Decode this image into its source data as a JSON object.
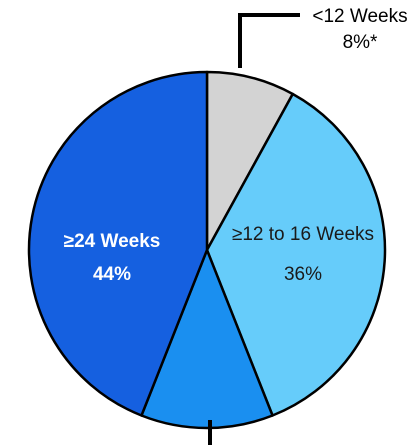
{
  "chart_data": {
    "type": "pie",
    "title": "",
    "slices": [
      {
        "label": "<12 Weeks",
        "value": 8,
        "value_label": "8%*",
        "color": "#d3d3d3",
        "label_position": "outside-top"
      },
      {
        "label": "≥12 to 16 Weeks",
        "value": 36,
        "value_label": "36%",
        "color": "#66ccfa",
        "label_position": "inside"
      },
      {
        "label": "",
        "value": 12,
        "value_label": "",
        "color": "#1a8ff0",
        "label_position": "outside-bottom"
      },
      {
        "label": "≥24 Weeks",
        "value": 44,
        "value_label": "44%",
        "color": "#1560e0",
        "label_position": "inside"
      }
    ],
    "start_angle": "12 o'clock",
    "direction": "clockwise",
    "slice_border_color": "#000000",
    "legend": "none"
  }
}
